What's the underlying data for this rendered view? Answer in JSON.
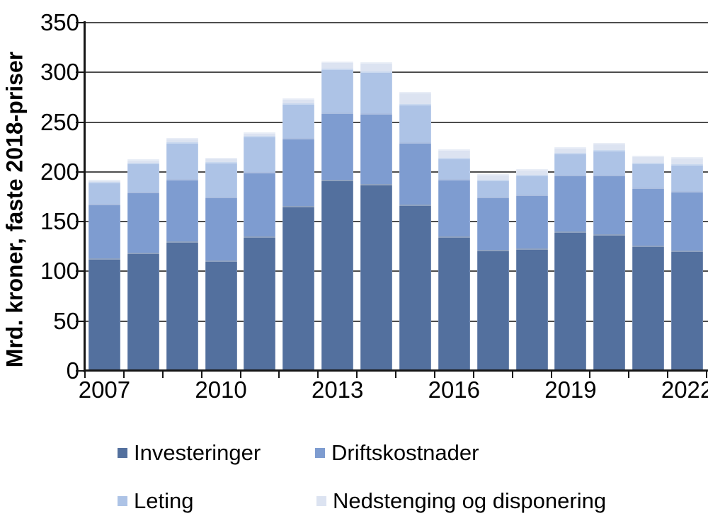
{
  "chart_data": {
    "type": "bar",
    "stacked": true,
    "title": "",
    "xlabel": "",
    "ylabel": "Mrd. kroner, faste 2018-priser",
    "categories": [
      "2007",
      "2008",
      "2009",
      "2010",
      "2011",
      "2012",
      "2013",
      "2014",
      "2015",
      "2016",
      "2017",
      "2018",
      "2019",
      "2020",
      "2021",
      "2022"
    ],
    "series": [
      {
        "name": "Investeringer",
        "color": "#53709e",
        "values": [
          113,
          119,
          130,
          111,
          135,
          166,
          192,
          188,
          167,
          135,
          122,
          123,
          140,
          137,
          126,
          121
        ]
      },
      {
        "name": "Driftskostnader",
        "color": "#7e9cd0",
        "values": [
          55,
          61,
          63,
          64,
          65,
          68,
          68,
          71,
          63,
          58,
          53,
          54,
          57,
          60,
          58,
          60
        ]
      },
      {
        "name": "Leting",
        "color": "#adc3e6",
        "values": [
          22,
          29,
          37,
          35,
          36,
          35,
          44,
          42,
          38,
          21,
          17,
          20,
          22,
          25,
          25,
          27
        ]
      },
      {
        "name": "Nedstenging og disponering",
        "color": "#dce3f1",
        "values": [
          2,
          4,
          4,
          4,
          4,
          5,
          7,
          9,
          12,
          9,
          6,
          6,
          6,
          7,
          7,
          7
        ]
      }
    ],
    "totals": [
      192,
      213,
      234,
      214,
      240,
      274,
      311,
      310,
      280,
      223,
      198,
      203,
      225,
      229,
      216,
      215
    ],
    "ylim": [
      0,
      350
    ],
    "y_ticks": [
      0,
      50,
      100,
      150,
      200,
      250,
      300,
      350
    ],
    "x_tick_labels": [
      "2007",
      "2010",
      "2013",
      "2016",
      "2019",
      "2022"
    ],
    "x_tick_positions": [
      0,
      3,
      6,
      9,
      12,
      15
    ],
    "grid": true,
    "legend_position": "bottom",
    "colors": {
      "grid": "#4d4d4d",
      "axis": "#161616",
      "text": "#000000",
      "background": "#ffffff"
    }
  }
}
